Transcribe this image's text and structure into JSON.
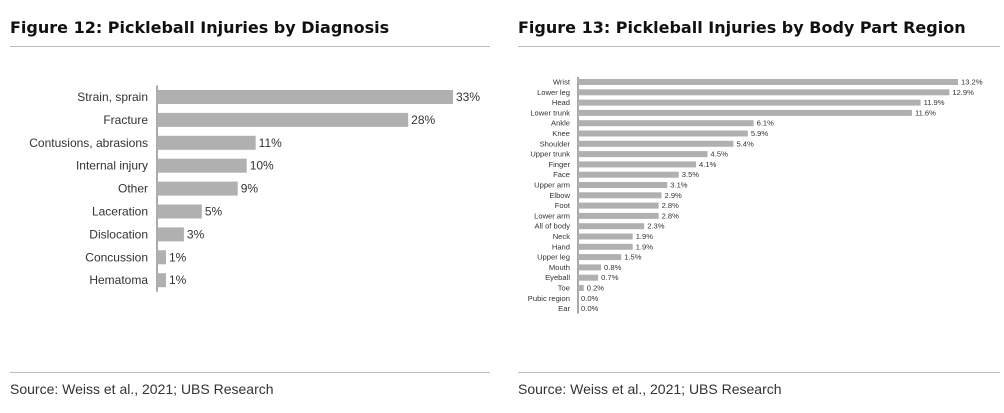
{
  "figures": [
    {
      "title": "Figure 12: Pickleball Injuries by Diagnosis",
      "source": "Source: Weiss et al., 2021; UBS Research"
    },
    {
      "title": "Figure 13: Pickleball Injuries by Body Part Region",
      "source": "Source: Weiss et al., 2021; UBS Research"
    }
  ],
  "chart_data": [
    {
      "type": "bar",
      "orientation": "horizontal",
      "title": "Figure 12: Pickleball Injuries by Diagnosis",
      "categories": [
        "Strain, sprain",
        "Fracture",
        "Contusions, abrasions",
        "Internal injury",
        "Other",
        "Laceration",
        "Dislocation",
        "Concussion",
        "Hematoma"
      ],
      "values": [
        33,
        28,
        11,
        10,
        9,
        5,
        3,
        1,
        1
      ],
      "value_labels": [
        "33%",
        "28%",
        "11%",
        "10%",
        "9%",
        "5%",
        "3%",
        "1%",
        "1%"
      ],
      "unit": "%",
      "xlim": [
        0,
        33
      ],
      "bar_color": "#b0b0b0",
      "grid": false,
      "legend": "none"
    },
    {
      "type": "bar",
      "orientation": "horizontal",
      "title": "Figure 13: Pickleball Injuries by Body Part Region",
      "categories": [
        "Wrist",
        "Lower leg",
        "Head",
        "Lower trunk",
        "Ankle",
        "Knee",
        "Shoulder",
        "Upper trunk",
        "Finger",
        "Face",
        "Upper arm",
        "Elbow",
        "Foot",
        "Lower arm",
        "All of body",
        "Neck",
        "Hand",
        "Upper leg",
        "Mouth",
        "Eyeball",
        "Toe",
        "Pubic region",
        "Ear"
      ],
      "values": [
        13.2,
        12.9,
        11.9,
        11.6,
        6.1,
        5.9,
        5.4,
        4.5,
        4.1,
        3.5,
        3.1,
        2.9,
        2.8,
        2.8,
        2.3,
        1.9,
        1.9,
        1.5,
        0.8,
        0.7,
        0.2,
        0.0,
        0.0
      ],
      "value_labels": [
        "13.2%",
        "12.9%",
        "11.9%",
        "11.6%",
        "6.1%",
        "5.9%",
        "5.4%",
        "4.5%",
        "4.1%",
        "3.5%",
        "3.1%",
        "2.9%",
        "2.8%",
        "2.8%",
        "2.3%",
        "1.9%",
        "1.9%",
        "1.5%",
        "0.8%",
        "0.7%",
        "0.2%",
        "0.0%",
        "0.0%"
      ],
      "unit": "%",
      "xlim": [
        0,
        13.2
      ],
      "bar_color": "#b0b0b0",
      "grid": false,
      "legend": "none"
    }
  ]
}
